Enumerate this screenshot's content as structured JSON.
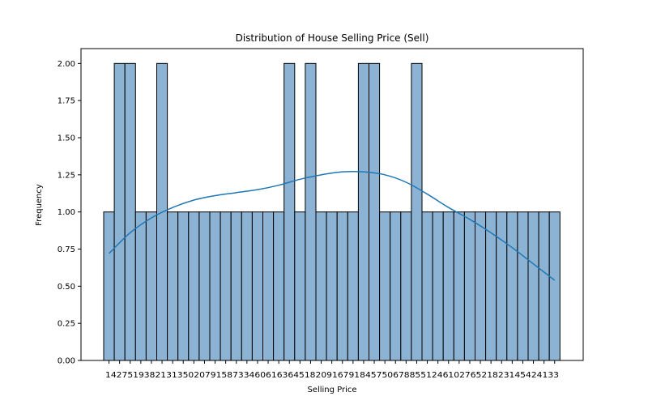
{
  "chart_data": {
    "type": "bar",
    "title": "Distribution of House Selling Price (Sell)",
    "xlabel": "Selling Price",
    "ylabel": "Frequency",
    "ylim": [
      0,
      2.1
    ],
    "yticks": [
      "0.00",
      "0.25",
      "0.50",
      "0.75",
      "1.00",
      "1.25",
      "1.50",
      "1.75",
      "2.00"
    ],
    "ytick_values": [
      0,
      0.25,
      0.5,
      0.75,
      1.0,
      1.25,
      1.5,
      1.75,
      2.0
    ],
    "xtick_text": "1427519382131350207915873346061636451820916791845750678855124610276521823145424133",
    "values": [
      1,
      2,
      2,
      1,
      1,
      2,
      1,
      1,
      1,
      1,
      1,
      1,
      1,
      1,
      1,
      1,
      1,
      2,
      1,
      2,
      1,
      1,
      1,
      1,
      2,
      2,
      1,
      1,
      1,
      2,
      1,
      1,
      1,
      1,
      1,
      1,
      1,
      1,
      1,
      1,
      1,
      1,
      1
    ],
    "kde": [
      0.72,
      0.86,
      0.96,
      1.03,
      1.08,
      1.11,
      1.13,
      1.15,
      1.18,
      1.22,
      1.25,
      1.27,
      1.27,
      1.25,
      1.2,
      1.12,
      1.03,
      0.95,
      0.86,
      0.76,
      0.65,
      0.54
    ],
    "grid": false,
    "legend": false,
    "colors": {
      "bar_fill": "#8cb3d3",
      "bar_edge": "#000000",
      "kde_line": "#1f77b4"
    }
  }
}
